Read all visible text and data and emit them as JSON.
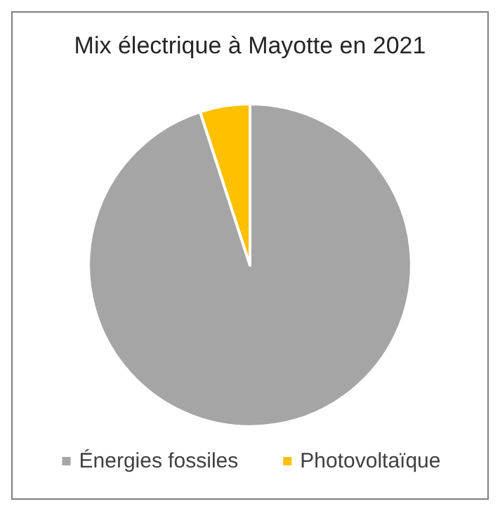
{
  "chart_data": {
    "type": "pie",
    "title": "Mix électrique à Mayotte en 2021",
    "categories": [
      "Énergies fossiles",
      "Photovoltaïque"
    ],
    "values": [
      95,
      5
    ],
    "colors": [
      "#a5a5a5",
      "#ffc000"
    ],
    "legend": "bottom"
  }
}
